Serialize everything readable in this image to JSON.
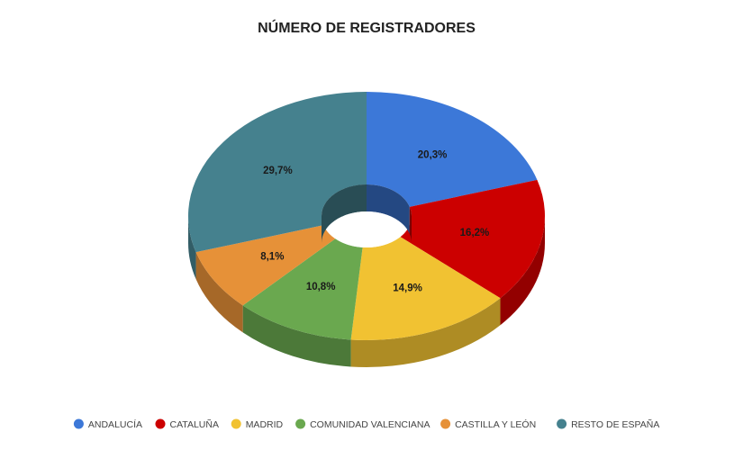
{
  "chart_data": {
    "type": "pie",
    "title": "NÚMERO DE REGISTRADORES",
    "style": "3d-donut",
    "legend_position": "bottom",
    "slices": [
      {
        "name": "ANDALUCÍA",
        "value": 20.3,
        "label": "20,3%",
        "color": "#3c78d8"
      },
      {
        "name": "CATALUÑA",
        "value": 16.2,
        "label": "16,2%",
        "color": "#cc0000"
      },
      {
        "name": "MADRID",
        "value": 14.9,
        "label": "14,9%",
        "color": "#f1c232"
      },
      {
        "name": "COMUNIDAD VALENCIANA",
        "value": 10.8,
        "label": "10,8%",
        "color": "#6aa84f"
      },
      {
        "name": "CASTILLA Y LEÓN",
        "value": 8.1,
        "label": "8,1%",
        "color": "#e69138"
      },
      {
        "name": "RESTO DE ESPAÑA",
        "value": 29.7,
        "label": "29,7%",
        "color": "#45818e"
      }
    ]
  }
}
